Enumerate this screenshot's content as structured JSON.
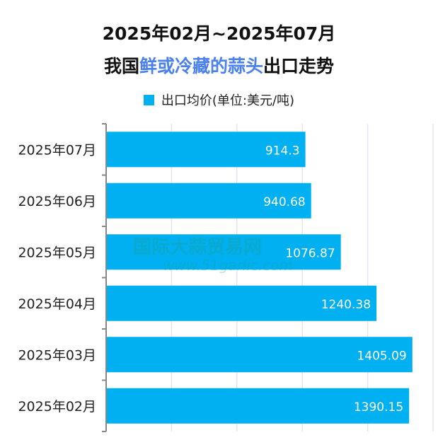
{
  "chart_data": {
    "type": "bar",
    "orientation": "horizontal",
    "title": "2025年02月~2025年07月",
    "subtitle": {
      "prefix": "我国",
      "highlight": "鲜或冷藏的蒜头",
      "suffix": "出口走势"
    },
    "categories": [
      "2025年07月",
      "2025年06月",
      "2025年05月",
      "2025年04月",
      "2025年03月",
      "2025年02月"
    ],
    "series": [
      {
        "name": "出口均价(单位:美元/吨)",
        "values": [
          914.3,
          940.68,
          1076.87,
          1240.38,
          1405.09,
          1390.15
        ]
      }
    ],
    "data_labels": [
      "914.3",
      "940.68",
      "1076.87",
      "1240.38",
      "1405.09",
      "1390.15"
    ],
    "xlim": [
      0,
      1500
    ],
    "x_grid_step": 300,
    "x_tick_labels_shown": false,
    "grid": true,
    "legend_position": "top",
    "colors": {
      "bar": "#00b0f0",
      "highlight_text": "#4a80f0",
      "grid": "#e4e6f0"
    },
    "watermark": {
      "text": "国际大蒜贸易网",
      "url": "www.51garlic.com"
    }
  }
}
